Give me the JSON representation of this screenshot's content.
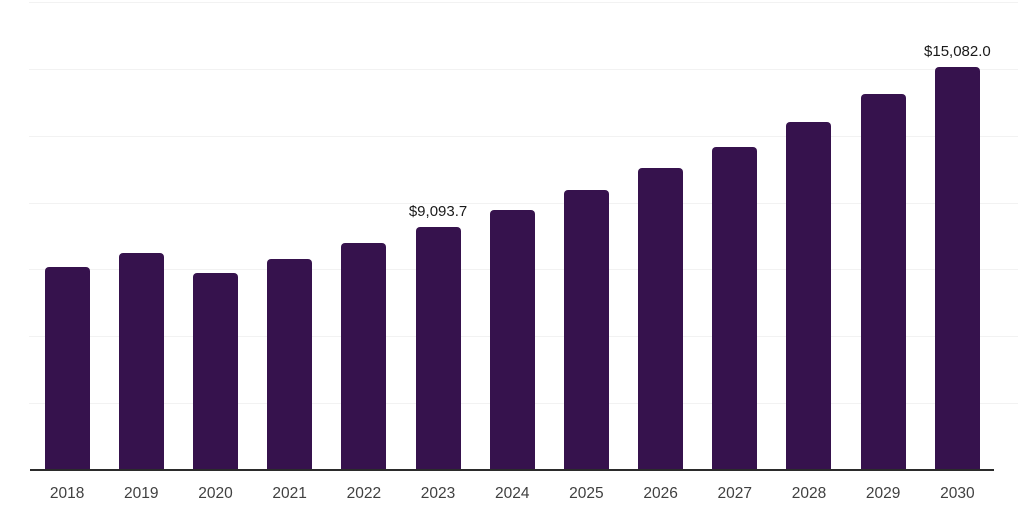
{
  "chart_data": {
    "type": "bar",
    "title": "",
    "xlabel": "",
    "ylabel": "",
    "categories": [
      "2018",
      "2019",
      "2020",
      "2021",
      "2022",
      "2023",
      "2024",
      "2025",
      "2026",
      "2027",
      "2028",
      "2029",
      "2030"
    ],
    "values": [
      7600,
      8120,
      7375,
      7900,
      8490,
      9093.7,
      9720,
      10465,
      11285,
      12070,
      13000,
      14045,
      15082
    ],
    "bar_labels": [
      "",
      "",
      "",
      "",
      "",
      "$9,093.7",
      "",
      "",
      "",
      "",
      "",
      "",
      "$15,082.0"
    ],
    "ylim": [
      0,
      17500
    ],
    "gridline_step": 2500,
    "grid": true,
    "legend": false,
    "colors": {
      "bar": "#36124d",
      "axis_line": "#2b2b2b",
      "gridline": "#f2f2f2",
      "tick_label": "#404040",
      "data_label": "#1a1a1a",
      "background": "#ffffff"
    }
  }
}
